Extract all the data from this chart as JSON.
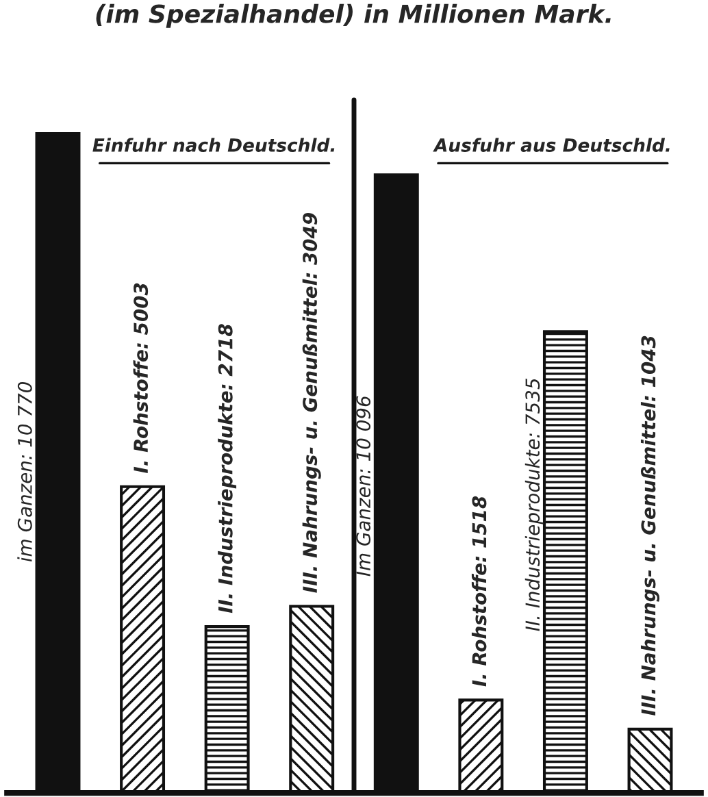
{
  "chart_data": {
    "type": "bar",
    "title": "(im Spezialhandel) in Millionen Mark.",
    "categories": [
      null,
      null,
      null,
      null,
      null,
      null,
      null,
      null
    ],
    "values": [
      10770,
      5003,
      2718,
      3049,
      10096,
      1518,
      7535,
      1043
    ],
    "colors": [
      "#111111",
      "#111111",
      "#111111",
      "#111111",
      "#111111",
      "#111111",
      "#111111",
      "#111111"
    ],
    "value_labels": [
      "im Ganzen: 10 770",
      "I. Rohstoffe: 5003",
      "II. Industrieprodukte: 2718",
      "III. Nahrungs- u. Genußmittel: 3049",
      "Im Ganzen: 10 096",
      "I. Rohstoffe: 1518",
      "II. Industrieprodukte: 7535",
      "III. Nahrungs- u. Genußmittel: 1043"
    ],
    "annotations": [
      "Einfuhr nach Deutschld.",
      "Ausfuhr aus Deutschld."
    ],
    "grid": false
  }
}
